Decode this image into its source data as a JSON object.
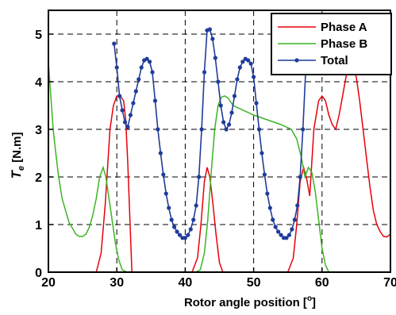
{
  "chart_data": {
    "type": "line",
    "title": "",
    "xlabel": "Rotor angle position [",
    "xlabel_unit": "o",
    "xlabel_close": "]",
    "ylabel_main": "T",
    "ylabel_sub": "e",
    "ylabel_unit": " [N.m]",
    "xlim": [
      20,
      70
    ],
    "ylim": [
      0,
      5.5
    ],
    "xticks": [
      20,
      30,
      40,
      50,
      60,
      70
    ],
    "yticks": [
      0,
      1,
      2,
      3,
      4,
      5
    ],
    "grid": true,
    "legend_position": "top-right",
    "series": [
      {
        "name": "Phase A",
        "color": "#e8000b",
        "marker": false,
        "x": [
          20,
          27,
          27.7,
          28.3,
          29,
          29.5,
          30,
          30.5,
          31,
          31.3,
          31.6,
          32.2,
          34,
          36,
          38,
          40,
          41,
          41.8,
          42.3,
          42.8,
          43.2,
          43.6,
          44,
          44.5,
          45,
          45.5,
          46,
          48,
          50,
          52,
          54,
          55,
          55.8,
          56.3,
          56.8,
          57.3,
          57.7,
          58.2,
          58.8,
          59.5,
          60,
          60.5,
          61,
          61.5,
          62,
          62.5,
          63,
          63.5,
          64,
          64.5,
          65,
          65.5,
          66,
          66.5,
          67,
          67.5,
          68,
          68.5,
          69,
          69.5,
          70
        ],
        "y": [
          0,
          0,
          0.4,
          1.4,
          3.0,
          3.5,
          3.7,
          3.7,
          3.6,
          3.2,
          2.3,
          0,
          0,
          0,
          0,
          0,
          0,
          0.3,
          1.0,
          1.9,
          2.2,
          2.0,
          1.5,
          0.8,
          0.2,
          0,
          0,
          0,
          0,
          0,
          0,
          0,
          0.3,
          1.0,
          1.9,
          2.2,
          2.0,
          1.6,
          3.0,
          3.6,
          3.7,
          3.6,
          3.3,
          3.1,
          3.0,
          3.3,
          3.7,
          4.1,
          4.3,
          4.3,
          4.1,
          3.6,
          3.0,
          2.4,
          1.8,
          1.3,
          1.0,
          0.85,
          0.75,
          0.74,
          0.8
        ]
      },
      {
        "name": "Phase B",
        "color": "#3cb423",
        "marker": false,
        "x": [
          20,
          20.3,
          20.7,
          21,
          21.5,
          22,
          23,
          24,
          24.5,
          25,
          25.5,
          26,
          26.5,
          27,
          27.5,
          28,
          28.4,
          28.8,
          29.3,
          29.8,
          30.3,
          30.8,
          31.5,
          34,
          36,
          38,
          40,
          41.5,
          42.2,
          42.8,
          43.3,
          43.8,
          44.3,
          44.8,
          45.3,
          45.8,
          46.3,
          47,
          50,
          52,
          54,
          55.5,
          56.3,
          57,
          57.5,
          58,
          58.5,
          59,
          59.5,
          60,
          60.5,
          61,
          62,
          65,
          70
        ],
        "y": [
          4.4,
          3.8,
          3.0,
          2.6,
          2.0,
          1.55,
          1.05,
          0.8,
          0.75,
          0.75,
          0.8,
          0.95,
          1.2,
          1.55,
          2.0,
          2.2,
          2.0,
          1.6,
          1.1,
          0.6,
          0.25,
          0.05,
          0,
          0,
          0,
          0,
          0,
          0,
          0.05,
          0.4,
          1.1,
          2.1,
          3.0,
          3.5,
          3.68,
          3.7,
          3.65,
          3.5,
          3.3,
          3.2,
          3.1,
          3.0,
          2.8,
          2.4,
          2.0,
          2.2,
          2.1,
          1.7,
          1.1,
          0.5,
          0.15,
          0,
          0,
          0,
          0
        ]
      },
      {
        "name": "Total",
        "color": "#1f3c99",
        "marker": true,
        "x": [
          29.6,
          30,
          30.4,
          30.8,
          31.2,
          31.6,
          32,
          32.4,
          32.8,
          33.2,
          33.6,
          34,
          34.4,
          34.8,
          35.2,
          35.6,
          36,
          36.4,
          36.8,
          37.2,
          37.6,
          38,
          38.4,
          38.8,
          39.2,
          39.6,
          40,
          40.4,
          40.8,
          41.2,
          41.6,
          42,
          42.4,
          42.8,
          43.2,
          43.6,
          44,
          44.4,
          44.8,
          45.2,
          45.6,
          46,
          46.4,
          46.8,
          47.2,
          47.6,
          48,
          48.4,
          48.8,
          49.2,
          49.6,
          50,
          50.4,
          50.8,
          51.2,
          51.6,
          52,
          52.4,
          52.8,
          53.2,
          53.6,
          54,
          54.4,
          54.8,
          55.2,
          55.6,
          56,
          56.4,
          56.8,
          57.2,
          57.6
        ],
        "y": [
          4.8,
          4.3,
          3.7,
          3.4,
          3.15,
          3.05,
          3.3,
          3.55,
          3.8,
          4.05,
          4.3,
          4.45,
          4.48,
          4.42,
          4.2,
          3.6,
          3.0,
          2.5,
          2.05,
          1.65,
          1.35,
          1.1,
          0.95,
          0.85,
          0.78,
          0.72,
          0.72,
          0.78,
          0.9,
          1.1,
          1.4,
          2.0,
          3.0,
          4.2,
          5.08,
          5.1,
          4.9,
          4.5,
          4.0,
          3.5,
          3.15,
          3.0,
          3.1,
          3.35,
          3.7,
          4.05,
          4.3,
          4.42,
          4.48,
          4.45,
          4.38,
          4.1,
          3.55,
          3.0,
          2.5,
          2.05,
          1.65,
          1.35,
          1.1,
          0.95,
          0.85,
          0.78,
          0.72,
          0.72,
          0.78,
          0.9,
          1.1,
          1.4,
          2.0,
          3.0,
          4.2
        ]
      }
    ]
  }
}
